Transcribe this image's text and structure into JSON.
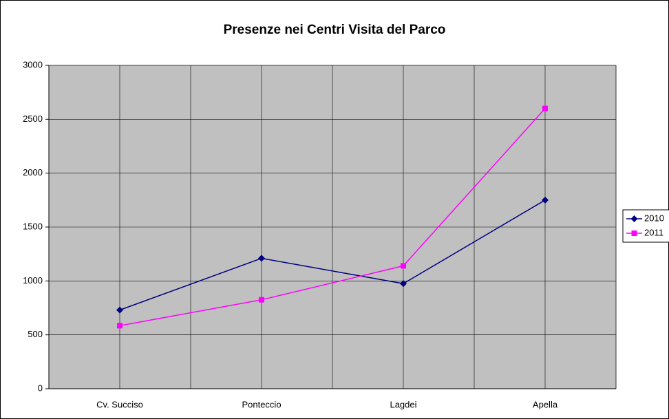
{
  "chart_data": {
    "type": "line",
    "title": "Presenze nei Centri Visita del Parco",
    "categories": [
      "Cv. Succiso",
      "Ponteccio",
      "Lagdei",
      "Apella"
    ],
    "series": [
      {
        "name": "2010",
        "color": "#000080",
        "marker": "diamond",
        "values": [
          730,
          1210,
          975,
          1750
        ]
      },
      {
        "name": "2011",
        "color": "#ff00ff",
        "marker": "square",
        "values": [
          585,
          825,
          1140,
          2600
        ]
      }
    ],
    "ylim": [
      0,
      3000
    ],
    "yticks": [
      0,
      500,
      1000,
      1500,
      2000,
      2500,
      3000
    ],
    "grid": true,
    "legend": "right"
  }
}
